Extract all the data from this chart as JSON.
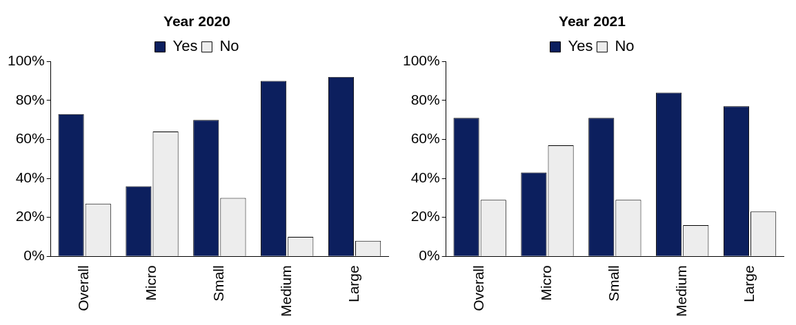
{
  "chart_data": [
    {
      "type": "bar",
      "title": "Year 2020",
      "categories": [
        "Overall",
        "Micro",
        "Small",
        "Medium",
        "Large"
      ],
      "series": [
        {
          "name": "Yes",
          "color": "#0c1f5e",
          "values": [
            73,
            36,
            70,
            90,
            92
          ]
        },
        {
          "name": "No",
          "color": "#ededed",
          "values": [
            27,
            64,
            30,
            10,
            8
          ]
        }
      ],
      "ylim": [
        0,
        100
      ],
      "yticks": [
        {
          "value": 0,
          "label": "0%"
        },
        {
          "value": 20,
          "label": "20%"
        },
        {
          "value": 40,
          "label": "40%"
        },
        {
          "value": 60,
          "label": "60%"
        },
        {
          "value": 80,
          "label": "80%"
        },
        {
          "value": 100,
          "label": "100%"
        }
      ],
      "grid": false,
      "legend": "top"
    },
    {
      "type": "bar",
      "title": "Year 2021",
      "categories": [
        "Overall",
        "Micro",
        "Small",
        "Medium",
        "Large"
      ],
      "series": [
        {
          "name": "Yes",
          "color": "#0c1f5e",
          "values": [
            71,
            43,
            71,
            84,
            77
          ]
        },
        {
          "name": "No",
          "color": "#ededed",
          "values": [
            29,
            57,
            29,
            16,
            23
          ]
        }
      ],
      "ylim": [
        0,
        100
      ],
      "yticks": [
        {
          "value": 0,
          "label": "0%"
        },
        {
          "value": 20,
          "label": "20%"
        },
        {
          "value": 40,
          "label": "40%"
        },
        {
          "value": 60,
          "label": "60%"
        },
        {
          "value": 80,
          "label": "80%"
        },
        {
          "value": 100,
          "label": "100%"
        }
      ],
      "grid": false,
      "legend": "top"
    }
  ]
}
